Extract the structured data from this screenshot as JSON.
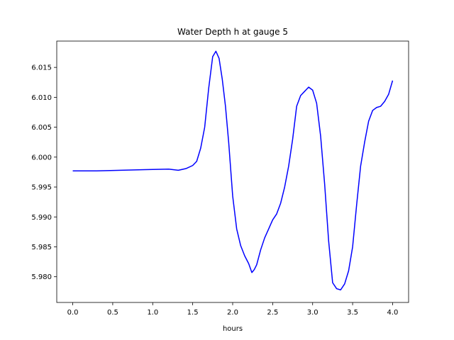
{
  "chart_data": {
    "type": "line",
    "title": "Water Depth h at gauge 5",
    "xlabel": "hours",
    "ylabel": "",
    "xlim": [
      -0.2,
      4.2
    ],
    "ylim": [
      5.9757,
      6.0194
    ],
    "x_ticks": [
      0.0,
      0.5,
      1.0,
      1.5,
      2.0,
      2.5,
      3.0,
      3.5,
      4.0
    ],
    "x_tick_labels": [
      "0.0",
      "0.5",
      "1.0",
      "1.5",
      "2.0",
      "2.5",
      "3.0",
      "3.5",
      "4.0"
    ],
    "y_ticks": [
      5.98,
      5.985,
      5.99,
      5.995,
      6.0,
      6.005,
      6.01,
      6.015
    ],
    "y_tick_labels": [
      "5.980",
      "5.985",
      "5.990",
      "5.995",
      "6.000",
      "6.005",
      "6.010",
      "6.015"
    ],
    "grid": false,
    "colors": {
      "series": "#0000ff",
      "axes": "#000000",
      "background": "#ffffff"
    },
    "series": [
      {
        "x": [
          0.0,
          0.3,
          0.6,
          0.9,
          1.2,
          1.32,
          1.42,
          1.5,
          1.55,
          1.6,
          1.65,
          1.7,
          1.75,
          1.79,
          1.83,
          1.87,
          1.91,
          1.95,
          2.0,
          2.05,
          2.1,
          2.15,
          2.2,
          2.24,
          2.27,
          2.3,
          2.35,
          2.4,
          2.45,
          2.5,
          2.55,
          2.6,
          2.65,
          2.7,
          2.75,
          2.8,
          2.85,
          2.9,
          2.95,
          3.0,
          3.05,
          3.1,
          3.15,
          3.2,
          3.25,
          3.3,
          3.35,
          3.4,
          3.45,
          3.5,
          3.55,
          3.6,
          3.65,
          3.7,
          3.75,
          3.8,
          3.85,
          3.9,
          3.95,
          4.0
        ],
        "y": [
          5.9977,
          5.9977,
          5.9978,
          5.9979,
          5.998,
          5.9978,
          5.9981,
          5.9986,
          5.9993,
          6.0015,
          6.005,
          6.0115,
          6.0168,
          6.0177,
          6.0165,
          6.013,
          6.0085,
          6.0025,
          5.9935,
          5.988,
          5.9852,
          5.9835,
          5.9822,
          5.9807,
          5.9812,
          5.982,
          5.9845,
          5.9865,
          5.988,
          5.9895,
          5.9905,
          5.9923,
          5.995,
          5.9985,
          6.003,
          6.0085,
          6.0103,
          6.011,
          6.0117,
          6.0112,
          6.009,
          6.0035,
          5.9955,
          5.986,
          5.979,
          5.978,
          5.9778,
          5.9788,
          5.981,
          5.985,
          5.992,
          5.9985,
          6.0025,
          6.006,
          6.0078,
          6.0083,
          6.0085,
          6.0093,
          6.0105,
          6.0128
        ]
      }
    ]
  }
}
